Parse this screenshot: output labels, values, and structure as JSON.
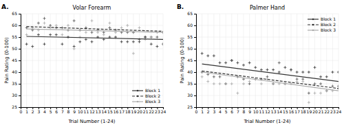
{
  "chart_data": [
    {
      "type": "scatter",
      "title": "Volar Forearm",
      "annotations": [
        "A."
      ],
      "xlabel": "Trial Number (1-24)",
      "ylabel": "Pain Rating (0-100)",
      "xlim": [
        0,
        24
      ],
      "ylim": [
        25,
        65
      ],
      "xticks": [
        0,
        1,
        2,
        3,
        4,
        5,
        6,
        7,
        8,
        9,
        10,
        11,
        12,
        13,
        14,
        15,
        16,
        17,
        18,
        19,
        20,
        21,
        22,
        23,
        24
      ],
      "yticks": [
        25,
        30,
        35,
        40,
        45,
        50,
        55,
        60,
        65
      ],
      "grid": true,
      "legend": "lower right",
      "series": [
        {
          "type": "scatter",
          "marker": "plus",
          "color": "#333333",
          "x": [
            1,
            2,
            3,
            4,
            5,
            6,
            7,
            8,
            9,
            10,
            11,
            12,
            13,
            14,
            15,
            16,
            17,
            18,
            19,
            20,
            21,
            22,
            23,
            24
          ],
          "values": [
            52,
            51,
            56,
            52,
            56,
            56,
            52,
            55,
            51,
            53,
            54,
            53,
            55,
            54,
            55,
            55,
            53,
            53,
            53,
            53,
            55,
            52,
            51,
            52
          ]
        },
        {
          "type": "scatter",
          "marker": "plus",
          "color": "#555555",
          "x": [
            1,
            2,
            3,
            4,
            5,
            6,
            7,
            8,
            9,
            10,
            11,
            12,
            13,
            14,
            15,
            16,
            17,
            18,
            19,
            20,
            21,
            22,
            23,
            24
          ],
          "values": [
            59,
            58,
            61,
            63,
            60,
            59,
            59,
            58,
            62,
            58,
            59,
            57,
            58,
            57,
            59,
            58,
            57,
            57,
            57,
            54,
            55,
            55,
            55,
            57
          ]
        },
        {
          "type": "scatter",
          "marker": "plus",
          "color": "#aaaaaa",
          "x": [
            1,
            2,
            3,
            4,
            5,
            6,
            7,
            8,
            9,
            10,
            11,
            12,
            13,
            14,
            15,
            16,
            17,
            18,
            19,
            20,
            21,
            22,
            23,
            24
          ],
          "values": [
            56,
            59,
            58,
            61,
            59,
            60,
            56,
            60,
            50,
            55,
            57,
            62,
            57,
            56,
            61,
            57,
            59,
            60,
            48,
            59,
            54,
            55,
            57,
            52
          ]
        },
        {
          "type": "line",
          "name": "Block 1",
          "color": "#333333",
          "line_style": "solid",
          "x": [
            1,
            24
          ],
          "values": [
            55.3,
            54.0
          ]
        },
        {
          "type": "line",
          "name": "Block 2",
          "color": "#333333",
          "line_style": "dashed",
          "x": [
            1,
            24
          ],
          "values": [
            59.5,
            57.5
          ]
        },
        {
          "type": "line",
          "name": "Block 3",
          "color": "#aaaaaa",
          "line_style": "solid",
          "x": [
            1,
            24
          ],
          "values": [
            58.5,
            57.0
          ]
        }
      ]
    },
    {
      "type": "scatter",
      "title": "Palmer Hand",
      "annotations": [
        "B."
      ],
      "xlabel": "Trial Number (1-24)",
      "ylabel": "Pain Rating (0-100)",
      "xlim": [
        0,
        24
      ],
      "ylim": [
        25,
        65
      ],
      "xticks": [
        0,
        1,
        2,
        3,
        4,
        5,
        6,
        7,
        8,
        9,
        10,
        11,
        12,
        13,
        14,
        15,
        16,
        17,
        18,
        19,
        20,
        21,
        22,
        23,
        24
      ],
      "yticks": [
        25,
        30,
        35,
        40,
        45,
        50,
        55,
        60,
        65
      ],
      "grid": true,
      "legend": "upper right",
      "series": [
        {
          "type": "scatter",
          "marker": "plus",
          "color": "#333333",
          "x": [
            1,
            2,
            3,
            4,
            5,
            6,
            7,
            8,
            9,
            10,
            11,
            12,
            13,
            14,
            15,
            16,
            17,
            18,
            19,
            20,
            21,
            22,
            23,
            24
          ],
          "values": [
            48,
            47,
            47,
            44,
            44,
            45,
            44,
            43,
            44,
            42,
            41,
            41,
            41,
            40,
            42,
            41,
            40,
            40,
            40,
            42,
            38,
            38,
            40,
            40
          ]
        },
        {
          "type": "scatter",
          "marker": "plus",
          "color": "#555555",
          "x": [
            1,
            2,
            3,
            4,
            5,
            6,
            7,
            8,
            9,
            10,
            11,
            12,
            13,
            14,
            15,
            16,
            17,
            18,
            19,
            20,
            21,
            22,
            23,
            24
          ],
          "values": [
            40,
            39,
            38,
            38,
            35,
            45,
            38,
            37,
            35,
            37,
            37,
            38,
            35,
            44,
            35,
            41,
            37,
            37,
            31,
            35,
            35,
            32,
            34,
            34
          ]
        },
        {
          "type": "scatter",
          "marker": "plus",
          "color": "#aaaaaa",
          "x": [
            1,
            2,
            3,
            4,
            5,
            6,
            7,
            8,
            9,
            10,
            11,
            12,
            13,
            14,
            15,
            16,
            17,
            18,
            19,
            20,
            21,
            22,
            23,
            24
          ],
          "values": [
            38,
            36,
            35,
            35,
            35,
            35,
            31,
            35,
            36,
            37,
            35,
            37,
            35,
            35,
            35,
            35,
            36,
            36,
            27,
            31,
            31,
            32,
            32,
            33
          ]
        },
        {
          "type": "line",
          "name": "Block 1",
          "color": "#333333",
          "line_style": "solid",
          "x": [
            1,
            24
          ],
          "values": [
            43.5,
            36.0
          ]
        },
        {
          "type": "line",
          "name": "Block 2",
          "color": "#333333",
          "line_style": "dashed",
          "x": [
            1,
            24
          ],
          "values": [
            40.5,
            33.0
          ]
        },
        {
          "type": "line",
          "name": "Block 3",
          "color": "#aaaaaa",
          "line_style": "solid",
          "x": [
            1,
            24
          ],
          "values": [
            40.0,
            32.0
          ]
        }
      ]
    }
  ]
}
